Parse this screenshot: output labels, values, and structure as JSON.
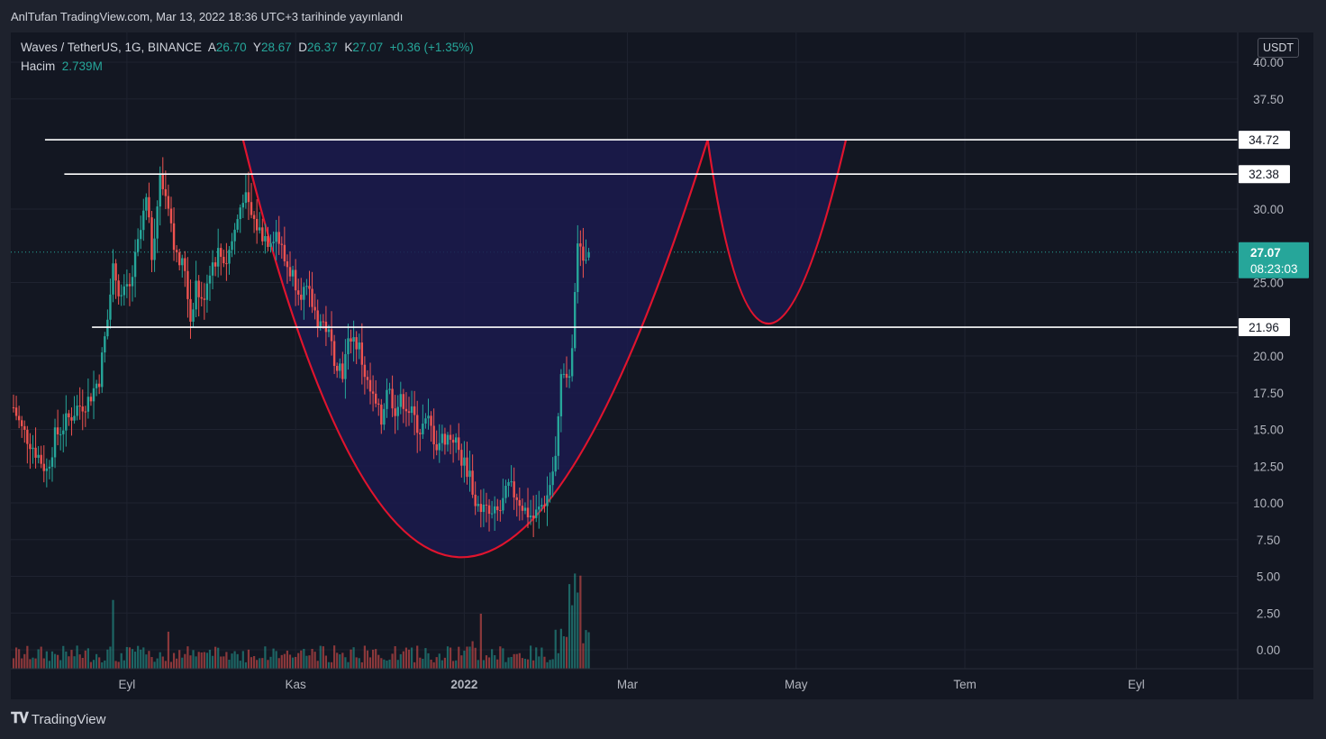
{
  "header": {
    "published": "AnlTufan TradingView.com, Mar 13, 2022 18:36 UTC+3 tarihinde yayınlandı"
  },
  "legend": {
    "symbol": "Waves / TetherUS, 1G, BINANCE",
    "open_label": "A",
    "open": "26.70",
    "high_label": "Y",
    "high": "28.67",
    "low_label": "D",
    "low": "26.37",
    "close_label": "K",
    "close": "27.07",
    "change": "+0.36 (+1.35%)",
    "volume_label": "Hacim",
    "volume": "2.739M"
  },
  "footer": {
    "brand": "TradingView"
  },
  "colors": {
    "up": "#26a69a",
    "down": "#ef5350",
    "curve": "#e0142e",
    "fill": "#1b1a4e",
    "hline": "#ffffff",
    "bg": "#131722"
  },
  "chart_data": {
    "type": "candlestick",
    "unit": "USDT",
    "ylim": [
      -1.3,
      41
    ],
    "y_ticks": [
      "40.00",
      "37.50",
      "30.00",
      "25.00",
      "20.00",
      "17.50",
      "15.00",
      "12.50",
      "10.00",
      "7.50",
      "5.00",
      "2.50",
      "0.00"
    ],
    "x_ticks": [
      {
        "label": "Eyl",
        "day": 41
      },
      {
        "label": "Kas",
        "day": 102
      },
      {
        "label": "2022",
        "day": 163
      },
      {
        "label": "Mar",
        "day": 222
      },
      {
        "label": "May",
        "day": 283
      },
      {
        "label": "Tem",
        "day": 344
      },
      {
        "label": "Eyl",
        "day": 406
      }
    ],
    "horizontal_levels": [
      {
        "value": 34.72,
        "label": "34.72",
        "from_day": -1
      },
      {
        "value": 32.38,
        "label": "32.38",
        "from_day": 6
      },
      {
        "value": 21.96,
        "label": "21.96",
        "from_day": 16
      }
    ],
    "last_price": {
      "value": 27.07,
      "label": "27.07",
      "countdown": "08:23:03"
    },
    "price_anchors": [
      [
        0,
        16.5
      ],
      [
        3,
        15.0
      ],
      [
        6,
        14.2
      ],
      [
        9,
        13.2
      ],
      [
        12,
        12.2
      ],
      [
        15,
        14.5
      ],
      [
        19,
        15.5
      ],
      [
        23,
        16.5
      ],
      [
        27,
        17.0
      ],
      [
        31,
        18.5
      ],
      [
        34,
        22.5
      ],
      [
        36,
        26.0
      ],
      [
        39,
        24.0
      ],
      [
        42,
        24.5
      ],
      [
        45,
        27.5
      ],
      [
        48,
        30.5
      ],
      [
        50,
        27.0
      ],
      [
        53,
        32.0
      ],
      [
        56,
        30.5
      ],
      [
        59,
        26.5
      ],
      [
        62,
        26.0
      ],
      [
        64,
        22.5
      ],
      [
        66,
        25.0
      ],
      [
        68,
        23.5
      ],
      [
        71,
        26.0
      ],
      [
        74,
        27.0
      ],
      [
        77,
        26.5
      ],
      [
        80,
        28.5
      ],
      [
        83,
        31.0
      ],
      [
        86,
        29.5
      ],
      [
        89,
        28.5
      ],
      [
        92,
        28.0
      ],
      [
        95,
        28.5
      ],
      [
        98,
        26.5
      ],
      [
        101,
        25.5
      ],
      [
        104,
        24.5
      ],
      [
        107,
        24.0
      ],
      [
        110,
        22.5
      ],
      [
        113,
        22.0
      ],
      [
        116,
        20.0
      ],
      [
        119,
        19.0
      ],
      [
        122,
        21.5
      ],
      [
        125,
        20.5
      ],
      [
        128,
        18.0
      ],
      [
        131,
        16.5
      ],
      [
        133,
        15.5
      ],
      [
        135,
        18.0
      ],
      [
        138,
        16.5
      ],
      [
        141,
        17.0
      ],
      [
        144,
        16.0
      ],
      [
        147,
        15.0
      ],
      [
        150,
        15.5
      ],
      [
        153,
        14.0
      ],
      [
        156,
        14.5
      ],
      [
        159,
        14.5
      ],
      [
        162,
        13.0
      ],
      [
        165,
        12.0
      ],
      [
        167,
        10.0
      ],
      [
        170,
        9.5
      ],
      [
        173,
        9.0
      ],
      [
        176,
        9.5
      ],
      [
        179,
        11.0
      ],
      [
        182,
        10.5
      ],
      [
        185,
        9.5
      ],
      [
        188,
        9.0
      ],
      [
        190,
        9.5
      ],
      [
        193,
        10.5
      ],
      [
        196,
        13.0
      ],
      [
        198,
        18.5
      ],
      [
        200,
        18.0
      ],
      [
        202,
        20.0
      ],
      [
        204,
        28.0
      ],
      [
        206,
        26.0
      ],
      [
        208,
        27.07
      ]
    ],
    "volume_series": [
      {
        "day": 36,
        "value": 6.5
      },
      {
        "day": 56,
        "value": 3.5
      },
      {
        "day": 169,
        "value": 5.2
      },
      {
        "day": 166,
        "value": 2.6
      },
      {
        "day": 201,
        "value": 8.0
      },
      {
        "day": 203,
        "value": 9.0
      },
      {
        "day": 205,
        "value": 8.8
      },
      {
        "day": 204,
        "value": 7.2
      },
      {
        "day": 202,
        "value": 6.0
      }
    ],
    "overlays": [
      {
        "type": "cup",
        "from": [
          83,
          34.72
        ],
        "bottom": [
          162,
          6.3
        ],
        "to": [
          251,
          34.72
        ]
      },
      {
        "type": "handle",
        "from": [
          251,
          34.72
        ],
        "bottom": [
          273,
          22.2
        ],
        "to": [
          301,
          34.72
        ]
      }
    ]
  }
}
